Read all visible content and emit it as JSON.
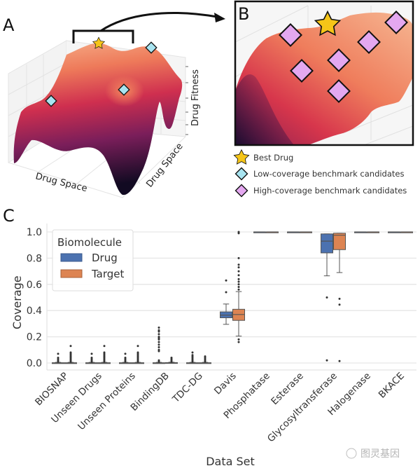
{
  "panels": {
    "a": {
      "letter": "A",
      "x_axis_label": "Drug Space",
      "y_axis_label": "Drug Space",
      "z_axis_label": "Drug Fitness"
    },
    "b": {
      "letter": "B",
      "legend": [
        {
          "icon": "star-icon",
          "label": "Best Drug",
          "color": "#f5c518"
        },
        {
          "icon": "diamond-icon",
          "label": "Low-coverage benchmark candidates",
          "color": "#a8e4f0"
        },
        {
          "icon": "diamond-icon",
          "label": "High-coverage benchmark candidates",
          "color": "#e4a8f0"
        }
      ]
    },
    "c": {
      "letter": "C"
    }
  },
  "watermark": "图灵基因",
  "chart_data": {
    "type": "box",
    "xlabel": "Data Set",
    "ylabel": "Coverage",
    "ylim": [
      0,
      1.0
    ],
    "yticks": [
      "0.0",
      "0.2",
      "0.4",
      "0.6",
      "0.8",
      "1.0"
    ],
    "grid": true,
    "legend": {
      "title": "Biomolecule",
      "placement": "top-left"
    },
    "categories": [
      "BIOSNAP",
      "Unseen Drugs",
      "Unseen Proteins",
      "BindingDB",
      "TDC-DG",
      "Davis",
      "Phosphatase",
      "Esterase",
      "Glycosyltransferase",
      "Halogenase",
      "BKACE"
    ],
    "series": [
      {
        "name": "Drug",
        "color": "#4c72b0",
        "boxes": [
          {
            "q1": 0,
            "median": 0,
            "q3": 0.002,
            "whislo": 0,
            "whishi": 0.005,
            "fliers": [
              0.01,
              0.02,
              0.03,
              0.04,
              0.07
            ]
          },
          {
            "q1": 0,
            "median": 0,
            "q3": 0.002,
            "whislo": 0,
            "whishi": 0.005,
            "fliers": [
              0.01,
              0.02,
              0.03,
              0.04,
              0.07
            ]
          },
          {
            "q1": 0,
            "median": 0,
            "q3": 0.002,
            "whislo": 0,
            "whishi": 0.005,
            "fliers": [
              0.01,
              0.02,
              0.03,
              0.04,
              0.07
            ]
          },
          {
            "q1": 0,
            "median": 0,
            "q3": 0.002,
            "whislo": 0,
            "whishi": 0.005,
            "fliers": [
              0.01,
              0.02,
              0.09,
              0.1,
              0.12,
              0.14,
              0.16,
              0.18,
              0.19,
              0.2,
              0.22,
              0.24,
              0.25,
              0.27
            ]
          },
          {
            "q1": 0,
            "median": 0,
            "q3": 0.002,
            "whislo": 0,
            "whishi": 0.005,
            "fliers": [
              0.01,
              0.02,
              0.03,
              0.04,
              0.05,
              0.06,
              0.08
            ]
          },
          {
            "q1": 0.345,
            "median": 0.365,
            "q3": 0.39,
            "whislo": 0.295,
            "whishi": 0.45,
            "fliers": [
              0.54,
              0.63
            ]
          },
          {
            "q1": 1.0,
            "median": 1.0,
            "q3": 1.0,
            "whislo": 1.0,
            "whishi": 1.0,
            "fliers": []
          },
          {
            "q1": 1.0,
            "median": 1.0,
            "q3": 1.0,
            "whislo": 1.0,
            "whishi": 1.0,
            "fliers": []
          },
          {
            "q1": 0.84,
            "median": 0.93,
            "q3": 0.985,
            "whislo": 0.665,
            "whishi": 0.985,
            "fliers": [
              0.5,
              0.02
            ]
          },
          {
            "q1": 1.0,
            "median": 1.0,
            "q3": 1.0,
            "whislo": 1.0,
            "whishi": 1.0,
            "fliers": []
          },
          {
            "q1": 1.0,
            "median": 1.0,
            "q3": 1.0,
            "whislo": 1.0,
            "whishi": 1.0,
            "fliers": []
          }
        ]
      },
      {
        "name": "Target",
        "color": "#dd8452",
        "boxes": [
          {
            "q1": 0,
            "median": 0,
            "q3": 0.002,
            "whislo": 0,
            "whishi": 0.005,
            "fliers": [
              0.01,
              0.02,
              0.03,
              0.04,
              0.05,
              0.06,
              0.07,
              0.08,
              0.13
            ]
          },
          {
            "q1": 0,
            "median": 0,
            "q3": 0.002,
            "whislo": 0,
            "whishi": 0.005,
            "fliers": [
              0.01,
              0.02,
              0.03,
              0.04,
              0.05,
              0.06,
              0.07,
              0.08,
              0.13
            ]
          },
          {
            "q1": 0,
            "median": 0,
            "q3": 0.002,
            "whislo": 0,
            "whishi": 0.005,
            "fliers": [
              0.01,
              0.02,
              0.03,
              0.04,
              0.05,
              0.06,
              0.07,
              0.08,
              0.13
            ]
          },
          {
            "q1": 0,
            "median": 0,
            "q3": 0.003,
            "whislo": 0,
            "whishi": 0.006,
            "fliers": [
              0.01,
              0.02,
              0.03,
              0.04
            ]
          },
          {
            "q1": 0,
            "median": 0,
            "q3": 0.002,
            "whislo": 0,
            "whishi": 0.005,
            "fliers": [
              0.01,
              0.02,
              0.03,
              0.04,
              0.05
            ]
          },
          {
            "q1": 0.325,
            "median": 0.37,
            "q3": 0.41,
            "whislo": 0.205,
            "whishi": 0.545,
            "fliers": [
              0.16,
              0.18,
              0.56,
              0.58,
              0.6,
              0.62,
              0.64,
              0.67,
              0.7,
              0.73,
              0.75,
              0.8,
              0.99,
              1.0
            ]
          },
          {
            "q1": 1.0,
            "median": 1.0,
            "q3": 1.0,
            "whislo": 1.0,
            "whishi": 1.0,
            "fliers": []
          },
          {
            "q1": 1.0,
            "median": 1.0,
            "q3": 1.0,
            "whislo": 1.0,
            "whishi": 1.0,
            "fliers": []
          },
          {
            "q1": 0.865,
            "median": 0.975,
            "q3": 0.99,
            "whislo": 0.69,
            "whishi": 0.99,
            "fliers": [
              0.49,
              0.445,
              0.015
            ]
          },
          {
            "q1": 1.0,
            "median": 1.0,
            "q3": 1.0,
            "whislo": 1.0,
            "whishi": 1.0,
            "fliers": []
          },
          {
            "q1": 1.0,
            "median": 1.0,
            "q3": 1.0,
            "whislo": 1.0,
            "whishi": 1.0,
            "fliers": []
          }
        ]
      }
    ]
  }
}
